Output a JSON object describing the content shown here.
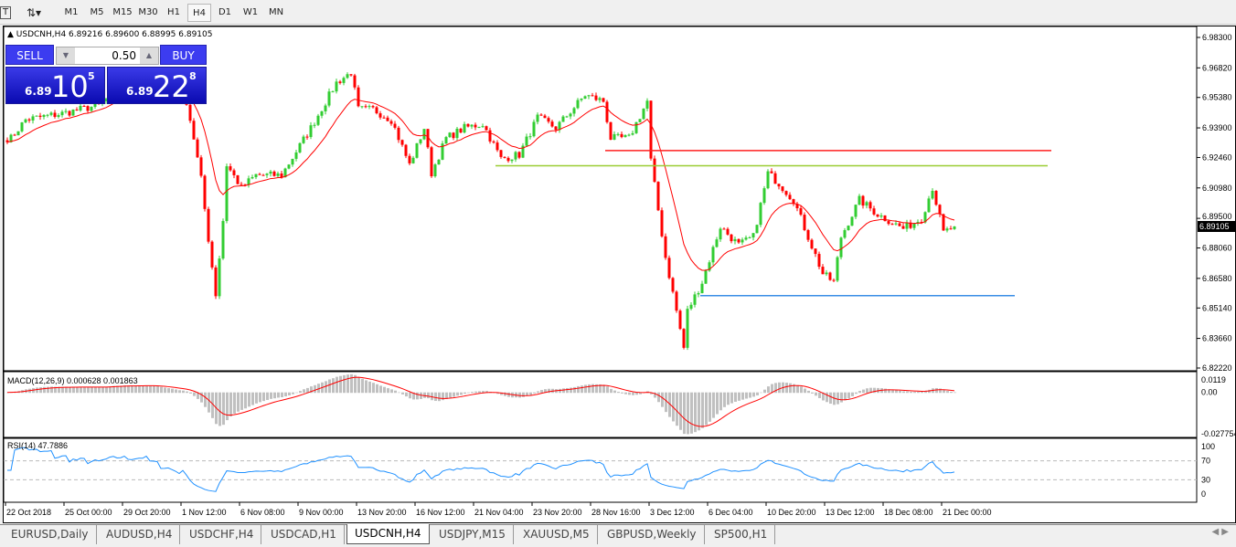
{
  "toolbar": {
    "timeframes": [
      "M1",
      "M5",
      "M15",
      "M30",
      "H1",
      "H4",
      "D1",
      "W1",
      "MN"
    ],
    "active": "H4"
  },
  "chart": {
    "symbol_line": "USDCNH,H4  6.89216 6.89600 6.88995 6.89105",
    "current_price": "6.89105",
    "price_axis": [
      "6.98300",
      "6.96820",
      "6.95380",
      "6.93900",
      "6.92460",
      "6.90980",
      "6.89500",
      "6.88060",
      "6.86580",
      "6.85140",
      "6.83660",
      "6.82220"
    ],
    "price_range": [
      6.8222,
      6.983
    ],
    "time_labels": [
      "22 Oct 2018",
      "25 Oct 00:00",
      "29 Oct 20:00",
      "1 Nov 12:00",
      "6 Nov 08:00",
      "9 Nov 00:00",
      "13 Nov 20:00",
      "16 Nov 12:00",
      "21 Nov 04:00",
      "23 Nov 20:00",
      "28 Nov 16:00",
      "3 Dec 12:00",
      "6 Dec 04:00",
      "10 Dec 20:00",
      "13 Dec 12:00",
      "18 Dec 08:00",
      "21 Dec 00:00"
    ],
    "price_anchors": [
      [
        1,
        6.934
      ],
      [
        5,
        6.943
      ],
      [
        15,
        6.946
      ],
      [
        25,
        6.95
      ],
      [
        30,
        6.957
      ],
      [
        38,
        6.961
      ],
      [
        49,
        6.952
      ],
      [
        51,
        6.934
      ],
      [
        53,
        6.914
      ],
      [
        55,
        6.885
      ],
      [
        57,
        6.858
      ],
      [
        59,
        6.894
      ],
      [
        60,
        6.921
      ],
      [
        64,
        6.91
      ],
      [
        68,
        6.916
      ],
      [
        75,
        6.916
      ],
      [
        83,
        6.939
      ],
      [
        90,
        6.961
      ],
      [
        94,
        6.966
      ],
      [
        96,
        6.948
      ],
      [
        100,
        6.948
      ],
      [
        105,
        6.943
      ],
      [
        110,
        6.921
      ],
      [
        114,
        6.939
      ],
      [
        116,
        6.917
      ],
      [
        120,
        6.934
      ],
      [
        125,
        6.939
      ],
      [
        130,
        6.941
      ],
      [
        135,
        6.924
      ],
      [
        140,
        6.926
      ],
      [
        145,
        6.944
      ],
      [
        150,
        6.939
      ],
      [
        158,
        6.955
      ],
      [
        163,
        6.952
      ],
      [
        165,
        6.934
      ],
      [
        170,
        6.934
      ],
      [
        175,
        6.952
      ],
      [
        176,
        6.923
      ],
      [
        178,
        6.899
      ],
      [
        180,
        6.876
      ],
      [
        183,
        6.85
      ],
      [
        185,
        6.832
      ],
      [
        186,
        6.85
      ],
      [
        190,
        6.864
      ],
      [
        195,
        6.891
      ],
      [
        200,
        6.882
      ],
      [
        204,
        6.886
      ],
      [
        208,
        6.917
      ],
      [
        211,
        6.912
      ],
      [
        215,
        6.904
      ],
      [
        219,
        6.886
      ],
      [
        223,
        6.868
      ],
      [
        226,
        6.864
      ],
      [
        228,
        6.886
      ],
      [
        233,
        6.904
      ],
      [
        238,
        6.897
      ],
      [
        245,
        6.89
      ],
      [
        250,
        6.895
      ],
      [
        253,
        6.91
      ],
      [
        256,
        6.888
      ],
      [
        259,
        6.891
      ]
    ],
    "hlines": [
      {
        "price": 6.928,
        "from": 164,
        "to": 286,
        "color": "#ff2020"
      },
      {
        "price": 6.9206,
        "from": 134,
        "to": 285,
        "color": "#9acd32"
      },
      {
        "price": 6.8574,
        "from": 190,
        "to": 276,
        "color": "#3a8ee6"
      }
    ],
    "colors": {
      "bull": "#32cd32",
      "bear": "#ff0000",
      "ma": "#ff0000",
      "macd_hist": "#c0c0c0",
      "rsi": "#1e90ff"
    }
  },
  "trade": {
    "sell_label": "SELL",
    "buy_label": "BUY",
    "lot": "0.50",
    "sell_small": "6.89",
    "sell_big": "10",
    "sell_sup": "5",
    "buy_small": "6.89",
    "buy_big": "22",
    "buy_sup": "8"
  },
  "macd": {
    "label": "MACD(12,26,9) 0.000628 0.001863",
    "axis": [
      "0.0119",
      "0.00",
      "-0.027754"
    ]
  },
  "rsi": {
    "label": "RSI(14) 47.7886",
    "axis": [
      "100",
      "70",
      "30",
      "0"
    ]
  },
  "tabs": [
    "EURUSD,Daily",
    "AUDUSD,H4",
    "USDCHF,H4",
    "USDCAD,H1",
    "USDCNH,H4",
    "USDJPY,M15",
    "XAUUSD,M5",
    "GBPUSD,Weekly",
    "SP500,H1"
  ],
  "active_tab": "USDCNH,H4"
}
